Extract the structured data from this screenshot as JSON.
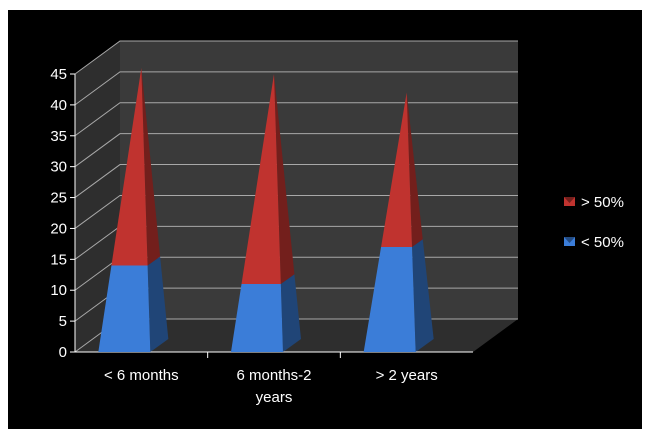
{
  "chart_data": {
    "type": "bar",
    "style": "3d-stacked-pyramid",
    "categories": [
      "< 6 months",
      "6 months-2 years",
      "> 2 years"
    ],
    "category_lines": [
      [
        "< 6 months"
      ],
      [
        "6 months-2",
        "years"
      ],
      [
        "> 2 years"
      ]
    ],
    "series": [
      {
        "name": "< 50%",
        "values": [
          14,
          11,
          17
        ],
        "color": "#3b7dd8"
      },
      {
        "name": "> 50%",
        "values": [
          32,
          34,
          25
        ],
        "color": "#c0332f"
      }
    ],
    "ylim": [
      0,
      45
    ],
    "yticks": [
      0,
      5,
      10,
      15,
      20,
      25,
      30,
      35,
      40,
      45
    ],
    "grid": true,
    "legend": "right",
    "background": "#000000",
    "wall_color": "#3a3a3a",
    "floor_color": "#2e2e2e"
  }
}
